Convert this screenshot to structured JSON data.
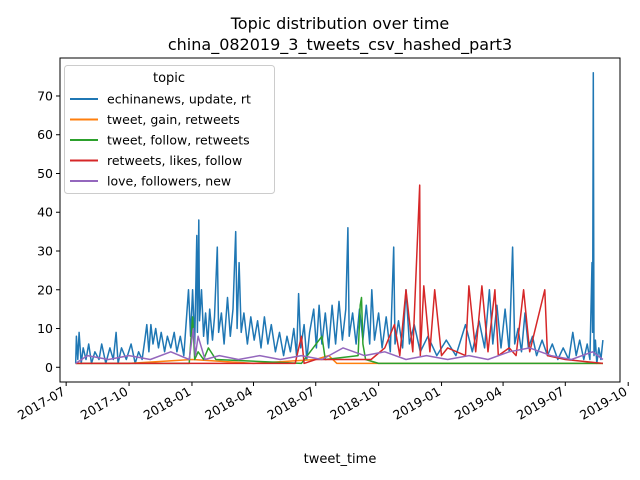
{
  "chart_data": {
    "type": "line",
    "title": "Topic distribution over time",
    "subtitle": "china_082019_3_tweets_csv_hashed_part3",
    "xlabel": "tweet_time",
    "ylabel": "",
    "x_range": [
      "2017-06-22",
      "2019-09-19"
    ],
    "ylim": [
      -3.8,
      79.8
    ],
    "x_ticks": [
      {
        "date": "2017-07-01",
        "label": "2017-07"
      },
      {
        "date": "2017-10-01",
        "label": "2017-10"
      },
      {
        "date": "2018-01-01",
        "label": "2018-01"
      },
      {
        "date": "2018-04-01",
        "label": "2018-04"
      },
      {
        "date": "2018-07-01",
        "label": "2018-07"
      },
      {
        "date": "2018-10-01",
        "label": "2018-10"
      },
      {
        "date": "2019-01-01",
        "label": "2019-01"
      },
      {
        "date": "2019-04-01",
        "label": "2019-04"
      },
      {
        "date": "2019-07-01",
        "label": "2019-07"
      },
      {
        "date": "2019-10-01",
        "label": "2019-10"
      }
    ],
    "y_ticks": [
      0,
      10,
      20,
      30,
      40,
      50,
      60,
      70
    ],
    "grid": false,
    "legend": {
      "title": "topic",
      "position": "upper-left"
    },
    "series": [
      {
        "name": "echinanews, update, rt",
        "color": "#1f77b4",
        "points": [
          [
            "2017-07-15",
            1
          ],
          [
            "2017-07-16",
            8
          ],
          [
            "2017-07-18",
            2
          ],
          [
            "2017-07-20",
            9
          ],
          [
            "2017-07-23",
            1
          ],
          [
            "2017-07-26",
            5
          ],
          [
            "2017-07-30",
            2
          ],
          [
            "2017-08-03",
            6
          ],
          [
            "2017-08-07",
            1
          ],
          [
            "2017-08-12",
            4
          ],
          [
            "2017-08-18",
            2
          ],
          [
            "2017-08-22",
            6
          ],
          [
            "2017-08-28",
            1
          ],
          [
            "2017-09-03",
            5
          ],
          [
            "2017-09-08",
            2
          ],
          [
            "2017-09-12",
            9
          ],
          [
            "2017-09-15",
            1
          ],
          [
            "2017-09-20",
            5
          ],
          [
            "2017-09-27",
            2
          ],
          [
            "2017-10-04",
            6
          ],
          [
            "2017-10-10",
            1
          ],
          [
            "2017-10-15",
            4
          ],
          [
            "2017-10-20",
            2
          ],
          [
            "2017-10-24",
            7
          ],
          [
            "2017-10-27",
            11
          ],
          [
            "2017-10-30",
            4
          ],
          [
            "2017-11-02",
            11
          ],
          [
            "2017-11-05",
            6
          ],
          [
            "2017-11-09",
            10
          ],
          [
            "2017-11-13",
            5
          ],
          [
            "2017-11-17",
            9
          ],
          [
            "2017-11-22",
            4
          ],
          [
            "2017-11-26",
            8
          ],
          [
            "2017-12-01",
            5
          ],
          [
            "2017-12-06",
            9
          ],
          [
            "2017-12-10",
            4
          ],
          [
            "2017-12-15",
            8
          ],
          [
            "2017-12-20",
            3
          ],
          [
            "2017-12-27",
            20
          ],
          [
            "2017-12-30",
            8
          ],
          [
            "2018-01-02",
            20
          ],
          [
            "2018-01-05",
            6
          ],
          [
            "2018-01-08",
            34
          ],
          [
            "2018-01-09",
            9
          ],
          [
            "2018-01-11",
            38
          ],
          [
            "2018-01-12",
            12
          ],
          [
            "2018-01-15",
            20
          ],
          [
            "2018-01-18",
            8
          ],
          [
            "2018-01-21",
            14
          ],
          [
            "2018-01-24",
            6
          ],
          [
            "2018-01-27",
            15
          ],
          [
            "2018-01-31",
            7
          ],
          [
            "2018-02-03",
            13
          ],
          [
            "2018-02-07",
            31
          ],
          [
            "2018-02-09",
            9
          ],
          [
            "2018-02-13",
            14
          ],
          [
            "2018-02-17",
            6
          ],
          [
            "2018-02-22",
            18
          ],
          [
            "2018-02-26",
            8
          ],
          [
            "2018-03-02",
            15
          ],
          [
            "2018-03-06",
            35
          ],
          [
            "2018-03-08",
            10
          ],
          [
            "2018-03-11",
            27
          ],
          [
            "2018-03-14",
            9
          ],
          [
            "2018-03-18",
            14
          ],
          [
            "2018-03-23",
            6
          ],
          [
            "2018-03-28",
            13
          ],
          [
            "2018-04-02",
            7
          ],
          [
            "2018-04-07",
            12
          ],
          [
            "2018-04-12",
            5
          ],
          [
            "2018-04-17",
            13
          ],
          [
            "2018-04-22",
            6
          ],
          [
            "2018-04-27",
            11
          ],
          [
            "2018-05-03",
            4
          ],
          [
            "2018-05-09",
            9
          ],
          [
            "2018-05-15",
            3
          ],
          [
            "2018-05-20",
            8
          ],
          [
            "2018-05-25",
            4
          ],
          [
            "2018-05-30",
            10
          ],
          [
            "2018-06-03",
            3
          ],
          [
            "2018-06-06",
            19
          ],
          [
            "2018-06-09",
            5
          ],
          [
            "2018-06-14",
            11
          ],
          [
            "2018-06-18",
            2
          ],
          [
            "2018-06-22",
            9
          ],
          [
            "2018-06-28",
            15
          ],
          [
            "2018-07-02",
            5
          ],
          [
            "2018-07-06",
            16
          ],
          [
            "2018-07-10",
            6
          ],
          [
            "2018-07-15",
            14
          ],
          [
            "2018-07-20",
            5
          ],
          [
            "2018-07-25",
            16
          ],
          [
            "2018-07-30",
            6
          ],
          [
            "2018-08-04",
            17
          ],
          [
            "2018-08-09",
            7
          ],
          [
            "2018-08-14",
            15
          ],
          [
            "2018-08-17",
            36
          ],
          [
            "2018-08-19",
            8
          ],
          [
            "2018-08-24",
            14
          ],
          [
            "2018-08-29",
            6
          ],
          [
            "2018-09-03",
            15
          ],
          [
            "2018-09-08",
            7
          ],
          [
            "2018-09-13",
            16
          ],
          [
            "2018-09-18",
            6
          ],
          [
            "2018-09-21",
            20
          ],
          [
            "2018-09-25",
            7
          ],
          [
            "2018-10-01",
            14
          ],
          [
            "2018-10-06",
            5
          ],
          [
            "2018-10-12",
            13
          ],
          [
            "2018-10-18",
            4
          ],
          [
            "2018-10-23",
            31
          ],
          [
            "2018-10-25",
            6
          ],
          [
            "2018-10-30",
            12
          ],
          [
            "2018-11-05",
            5
          ],
          [
            "2018-11-10",
            20
          ],
          [
            "2018-11-15",
            6
          ],
          [
            "2018-11-22",
            11
          ],
          [
            "2018-12-01",
            4
          ],
          [
            "2018-12-12",
            8
          ],
          [
            "2018-12-25",
            3
          ],
          [
            "2019-01-08",
            7
          ],
          [
            "2019-01-22",
            3
          ],
          [
            "2019-02-05",
            11
          ],
          [
            "2019-02-15",
            4
          ],
          [
            "2019-02-25",
            12
          ],
          [
            "2019-03-05",
            5
          ],
          [
            "2019-03-12",
            20
          ],
          [
            "2019-03-17",
            6
          ],
          [
            "2019-03-23",
            16
          ],
          [
            "2019-03-29",
            5
          ],
          [
            "2019-04-04",
            15
          ],
          [
            "2019-04-10",
            4
          ],
          [
            "2019-04-15",
            31
          ],
          [
            "2019-04-18",
            6
          ],
          [
            "2019-04-23",
            10
          ],
          [
            "2019-04-28",
            4
          ],
          [
            "2019-05-03",
            14
          ],
          [
            "2019-05-08",
            5
          ],
          [
            "2019-05-14",
            8
          ],
          [
            "2019-05-20",
            3
          ],
          [
            "2019-05-28",
            7
          ],
          [
            "2019-06-05",
            3
          ],
          [
            "2019-06-12",
            6
          ],
          [
            "2019-06-20",
            2
          ],
          [
            "2019-06-28",
            5
          ],
          [
            "2019-07-06",
            2
          ],
          [
            "2019-07-12",
            9
          ],
          [
            "2019-07-17",
            3
          ],
          [
            "2019-07-22",
            7
          ],
          [
            "2019-07-28",
            2
          ],
          [
            "2019-08-02",
            6
          ],
          [
            "2019-08-06",
            2
          ],
          [
            "2019-08-09",
            27
          ],
          [
            "2019-08-10",
            9
          ],
          [
            "2019-08-11",
            76
          ],
          [
            "2019-08-12",
            3
          ],
          [
            "2019-08-14",
            7
          ],
          [
            "2019-08-16",
            1
          ],
          [
            "2019-08-19",
            5
          ],
          [
            "2019-08-22",
            2
          ],
          [
            "2019-08-25",
            7
          ]
        ]
      },
      {
        "name": "tweet, gain, retweets",
        "color": "#ff7f0e",
        "points": [
          [
            "2017-07-15",
            1
          ],
          [
            "2017-10-01",
            1
          ],
          [
            "2018-01-01",
            2
          ],
          [
            "2018-04-01",
            1
          ],
          [
            "2018-07-01",
            2
          ],
          [
            "2018-07-20",
            3
          ],
          [
            "2018-08-01",
            1
          ],
          [
            "2018-10-01",
            1
          ],
          [
            "2019-01-01",
            1
          ],
          [
            "2019-04-01",
            1
          ],
          [
            "2019-07-01",
            1
          ],
          [
            "2019-08-25",
            1
          ]
        ]
      },
      {
        "name": "tweet, follow, retweets",
        "color": "#2ca02c",
        "points": [
          [
            "2017-07-15",
            1
          ],
          [
            "2017-12-28",
            1
          ],
          [
            "2018-01-02",
            13
          ],
          [
            "2018-01-05",
            2
          ],
          [
            "2018-01-10",
            4
          ],
          [
            "2018-01-18",
            2
          ],
          [
            "2018-01-25",
            5
          ],
          [
            "2018-02-05",
            2
          ],
          [
            "2018-06-10",
            1
          ],
          [
            "2018-07-10",
            8
          ],
          [
            "2018-07-15",
            2
          ],
          [
            "2018-09-01",
            3
          ],
          [
            "2018-09-04",
            16
          ],
          [
            "2018-09-06",
            18
          ],
          [
            "2018-09-08",
            6
          ],
          [
            "2018-09-12",
            2
          ],
          [
            "2018-10-01",
            1
          ],
          [
            "2019-08-25",
            1
          ]
        ]
      },
      {
        "name": "retweets, likes, follow",
        "color": "#d62728",
        "points": [
          [
            "2017-07-15",
            1
          ],
          [
            "2018-06-01",
            1
          ],
          [
            "2018-06-10",
            8
          ],
          [
            "2018-06-14",
            1
          ],
          [
            "2018-07-01",
            2
          ],
          [
            "2018-09-20",
            2
          ],
          [
            "2018-10-10",
            5
          ],
          [
            "2018-10-24",
            11
          ],
          [
            "2018-11-01",
            3
          ],
          [
            "2018-11-10",
            20
          ],
          [
            "2018-11-20",
            4
          ],
          [
            "2018-11-30",
            47
          ],
          [
            "2018-12-01",
            3
          ],
          [
            "2018-12-06",
            21
          ],
          [
            "2018-12-15",
            4
          ],
          [
            "2018-12-22",
            20
          ],
          [
            "2019-01-01",
            3
          ],
          [
            "2019-01-10",
            5
          ],
          [
            "2019-02-05",
            3
          ],
          [
            "2019-02-10",
            21
          ],
          [
            "2019-02-20",
            4
          ],
          [
            "2019-03-01",
            21
          ],
          [
            "2019-03-10",
            4
          ],
          [
            "2019-03-20",
            20
          ],
          [
            "2019-03-25",
            3
          ],
          [
            "2019-04-10",
            5
          ],
          [
            "2019-04-20",
            3
          ],
          [
            "2019-05-01",
            20
          ],
          [
            "2019-05-10",
            4
          ],
          [
            "2019-06-01",
            20
          ],
          [
            "2019-06-05",
            3
          ],
          [
            "2019-07-01",
            2
          ],
          [
            "2019-08-25",
            1
          ]
        ]
      },
      {
        "name": "love, followers, new",
        "color": "#9467bd",
        "points": [
          [
            "2017-07-15",
            1
          ],
          [
            "2017-08-01",
            3
          ],
          [
            "2017-09-01",
            2
          ],
          [
            "2017-10-01",
            3
          ],
          [
            "2017-11-01",
            2
          ],
          [
            "2017-12-01",
            4
          ],
          [
            "2017-12-28",
            2
          ],
          [
            "2018-01-03",
            10
          ],
          [
            "2018-01-06",
            3
          ],
          [
            "2018-01-10",
            8
          ],
          [
            "2018-01-20",
            2
          ],
          [
            "2018-02-10",
            3
          ],
          [
            "2018-03-10",
            2
          ],
          [
            "2018-04-10",
            3
          ],
          [
            "2018-05-10",
            2
          ],
          [
            "2018-06-10",
            3
          ],
          [
            "2018-07-10",
            2
          ],
          [
            "2018-08-10",
            5
          ],
          [
            "2018-09-10",
            3
          ],
          [
            "2018-10-10",
            4
          ],
          [
            "2018-11-10",
            2
          ],
          [
            "2018-12-10",
            3
          ],
          [
            "2019-01-10",
            2
          ],
          [
            "2019-02-10",
            3
          ],
          [
            "2019-03-10",
            2
          ],
          [
            "2019-04-10",
            4
          ],
          [
            "2019-05-10",
            5
          ],
          [
            "2019-06-10",
            3
          ],
          [
            "2019-07-10",
            2
          ],
          [
            "2019-08-10",
            4
          ],
          [
            "2019-08-25",
            2
          ]
        ]
      }
    ]
  }
}
